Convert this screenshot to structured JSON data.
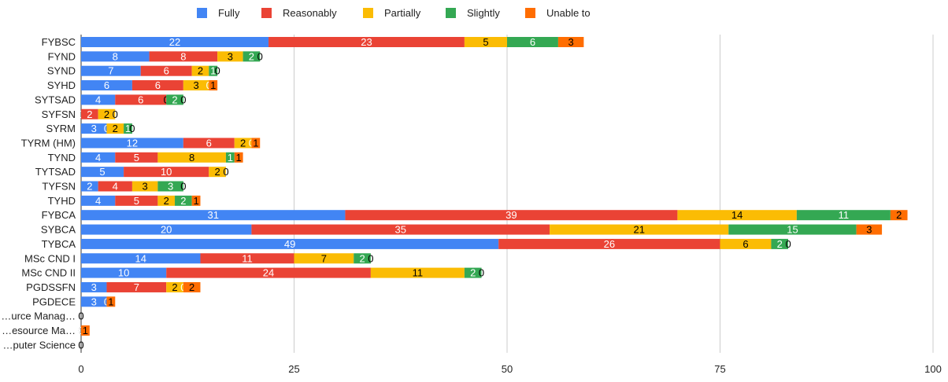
{
  "chart_data": {
    "type": "bar",
    "orientation": "horizontal",
    "stacked": true,
    "categories": [
      "FYBSC",
      "FYND",
      "SYND",
      "SYHD",
      "SYTSAD",
      "SYFSN",
      "SYRM",
      "TYRM (HM)",
      "TYND",
      "TYTSAD",
      "TYFSN",
      "TYHD",
      "FYBCA",
      "SYBCA",
      "TYBCA",
      "MSc CND I",
      "MSc CND II",
      "PGDSSFN",
      "PGDECE",
      "…urce Manag…",
      "…esource Ma…",
      "…puter Science"
    ],
    "series": [
      {
        "name": "Fully",
        "color": "#4285f4",
        "label_color": "#ffffff",
        "values": [
          22,
          8,
          7,
          6,
          4,
          0,
          3,
          12,
          4,
          5,
          2,
          4,
          31,
          20,
          49,
          14,
          10,
          3,
          3,
          0,
          0,
          0
        ]
      },
      {
        "name": "Reasonably",
        "color": "#ea4335",
        "label_color": "#ffffff",
        "values": [
          23,
          8,
          6,
          6,
          6,
          2,
          0,
          6,
          5,
          10,
          4,
          5,
          39,
          35,
          26,
          11,
          24,
          7,
          0,
          0,
          0,
          0
        ]
      },
      {
        "name": "Partially",
        "color": "#fbbc04",
        "label_color": "#000000",
        "values": [
          5,
          3,
          2,
          3,
          0,
          2,
          2,
          2,
          8,
          2,
          3,
          2,
          14,
          21,
          6,
          7,
          11,
          2,
          0,
          0,
          0,
          0
        ]
      },
      {
        "name": "Slightly",
        "color": "#34a853",
        "label_color": "#ffffff",
        "values": [
          6,
          2,
          1,
          0,
          2,
          0,
          1,
          0,
          1,
          0,
          3,
          2,
          11,
          15,
          2,
          2,
          2,
          0,
          0,
          0,
          0,
          0
        ]
      },
      {
        "name": "Unable to",
        "color": "#ff6d01",
        "label_color": "#000000",
        "values": [
          3,
          0,
          0,
          1,
          0,
          0,
          0,
          1,
          1,
          0,
          0,
          1,
          2,
          3,
          0,
          0,
          0,
          2,
          1,
          0,
          1,
          0
        ]
      }
    ],
    "xlim": [
      0,
      100
    ],
    "xticks": [
      0,
      25,
      50,
      75,
      100
    ],
    "grid": true,
    "legend_position": "top",
    "title": "",
    "xlabel": "",
    "ylabel": ""
  }
}
